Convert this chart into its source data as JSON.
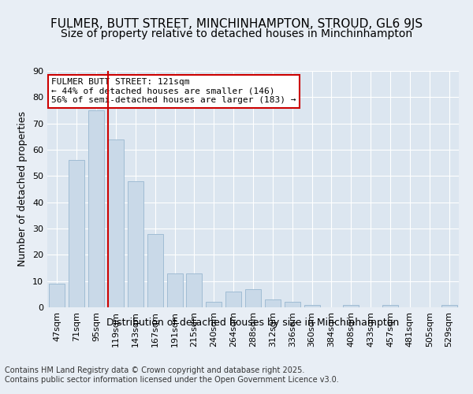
{
  "title": "FULMER, BUTT STREET, MINCHINHAMPTON, STROUD, GL6 9JS",
  "subtitle": "Size of property relative to detached houses in Minchinhampton",
  "xlabel": "Distribution of detached houses by size in Minchinhampton",
  "ylabel": "Number of detached properties",
  "categories": [
    "47sqm",
    "71sqm",
    "95sqm",
    "119sqm",
    "143sqm",
    "167sqm",
    "191sqm",
    "215sqm",
    "240sqm",
    "264sqm",
    "288sqm",
    "312sqm",
    "336sqm",
    "360sqm",
    "384sqm",
    "408sqm",
    "433sqm",
    "457sqm",
    "481sqm",
    "505sqm",
    "529sqm"
  ],
  "values": [
    9,
    56,
    75,
    64,
    48,
    28,
    13,
    13,
    2,
    6,
    7,
    3,
    2,
    1,
    0,
    1,
    0,
    1,
    0,
    0,
    1
  ],
  "bar_color": "#c9d9e8",
  "bar_edge_color": "#a0bcd4",
  "vline_color": "#cc0000",
  "vline_x": 2.6,
  "annotation_text": "FULMER BUTT STREET: 121sqm\n← 44% of detached houses are smaller (146)\n56% of semi-detached houses are larger (183) →",
  "annotation_box_color": "#ffffff",
  "annotation_box_edge": "#cc0000",
  "bg_color": "#e8eef5",
  "plot_bg_color": "#dce6f0",
  "grid_color": "#ffffff",
  "footer": "Contains HM Land Registry data © Crown copyright and database right 2025.\nContains public sector information licensed under the Open Government Licence v3.0.",
  "ylim": [
    0,
    90
  ],
  "yticks": [
    0,
    10,
    20,
    30,
    40,
    50,
    60,
    70,
    80,
    90
  ],
  "title_fontsize": 11,
  "subtitle_fontsize": 10,
  "axis_label_fontsize": 9,
  "tick_fontsize": 8,
  "annotation_fontsize": 8,
  "footer_fontsize": 7
}
